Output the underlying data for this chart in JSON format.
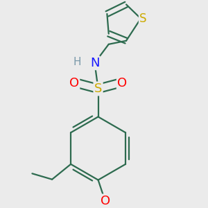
{
  "bg_color": "#ebebeb",
  "bond_color": "#2d6b4f",
  "bond_width": 1.6,
  "atom_colors": {
    "S_sulfonamide": "#ccaa00",
    "S_thiophene": "#ccaa00",
    "N": "#1a1aff",
    "O": "#ff0000",
    "H": "#7a9aaa",
    "C": "#2d6b4f"
  },
  "figsize": [
    3.0,
    3.0
  ],
  "dpi": 100
}
